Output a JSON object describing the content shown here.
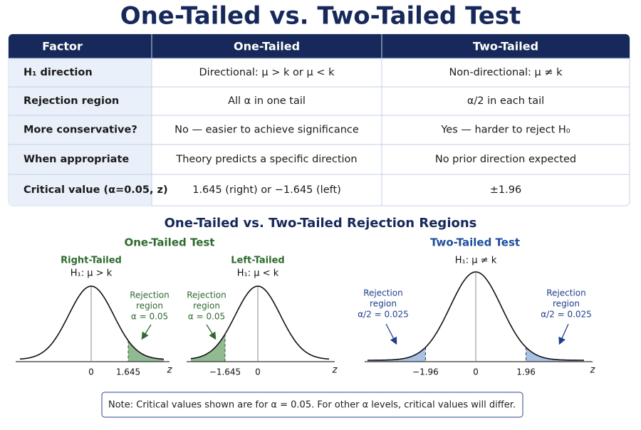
{
  "title": "One-Tailed vs. Two-Tailed Test",
  "table": {
    "header": [
      "Factor",
      "One-Tailed",
      "Two-Tailed"
    ],
    "rows": [
      [
        "H₁ direction",
        "Directional: μ > k or μ < k",
        "Non-directional: μ ≠ k"
      ],
      [
        "Rejection region",
        "All α in one tail",
        "α/2 in each tail"
      ],
      [
        "More conservative?",
        "No — easier to achieve significance",
        "Yes — harder to reject H₀"
      ],
      [
        "When appropriate",
        "Theory predicts a specific direction",
        "No prior direction expected"
      ],
      [
        "Critical value (α=0.05, z)",
        "1.645 (right) or −1.645 (left)",
        "±1.96"
      ]
    ]
  },
  "figure": {
    "title": "One-Tailed vs. Two-Tailed Rejection Regions",
    "one_tailed": {
      "title": "One-Tailed Test",
      "panels": [
        {
          "title": "Right-Tailed",
          "hypothesis": "H₁: μ > k",
          "region_label": [
            "Rejection",
            "region",
            "α = 0.05"
          ],
          "ticks": [
            "0",
            "1.645"
          ],
          "axis": "z"
        },
        {
          "title": "Left-Tailed",
          "hypothesis": "H₁: μ < k",
          "region_label": [
            "Rejection",
            "region",
            "α = 0.05"
          ],
          "ticks": [
            "−1.645",
            "0"
          ],
          "axis": "z"
        }
      ]
    },
    "two_tailed": {
      "title": "Two-Tailed Test",
      "hypothesis": "H₁: μ ≠ k",
      "region_labels": [
        [
          "Rejection",
          "region",
          "α/2 = 0.025"
        ],
        [
          "Rejection",
          "region",
          "α/2 = 0.025"
        ]
      ],
      "ticks": [
        "−1.96",
        "0",
        "1.96"
      ],
      "axis": "z"
    }
  },
  "note": "Note: Critical values shown are for α = 0.05. For other α levels, critical values will differ."
}
